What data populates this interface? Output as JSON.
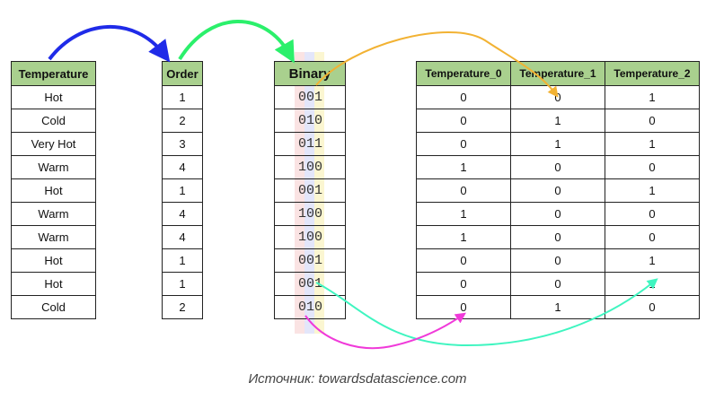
{
  "temperature_table": {
    "header": "Temperature",
    "rows": [
      "Hot",
      "Cold",
      "Very Hot",
      "Warm",
      "Hot",
      "Warm",
      "Warm",
      "Hot",
      "Hot",
      "Cold"
    ]
  },
  "order_table": {
    "header": "Order",
    "rows": [
      "1",
      "2",
      "3",
      "4",
      "1",
      "4",
      "4",
      "1",
      "1",
      "2"
    ]
  },
  "binary_table": {
    "header": "Binary",
    "rows": [
      "001",
      "010",
      "011",
      "100",
      "001",
      "100",
      "100",
      "001",
      "001",
      "010"
    ]
  },
  "onehot_table": {
    "headers": [
      "Temperature_0",
      "Temperature_1",
      "Temperature_2"
    ],
    "rows": [
      [
        "0",
        "0",
        "1"
      ],
      [
        "0",
        "1",
        "0"
      ],
      [
        "0",
        "1",
        "1"
      ],
      [
        "1",
        "0",
        "0"
      ],
      [
        "0",
        "0",
        "1"
      ],
      [
        "1",
        "0",
        "0"
      ],
      [
        "1",
        "0",
        "0"
      ],
      [
        "0",
        "0",
        "1"
      ],
      [
        "0",
        "0",
        "1"
      ],
      [
        "0",
        "1",
        "0"
      ]
    ]
  },
  "colors": {
    "header_bg": "#a9d08e",
    "arrow_blue": "#1f2be8",
    "arrow_green": "#2bf06b",
    "arrow_orange": "#f2b233",
    "arrow_teal": "#3ff5c0",
    "arrow_magenta": "#f03ad9",
    "bit_red": "#f4c2c2",
    "bit_blue": "#c2c8f4",
    "bit_yellow": "#f7ec9a"
  },
  "caption": "Источник: towardsdatascience.com"
}
